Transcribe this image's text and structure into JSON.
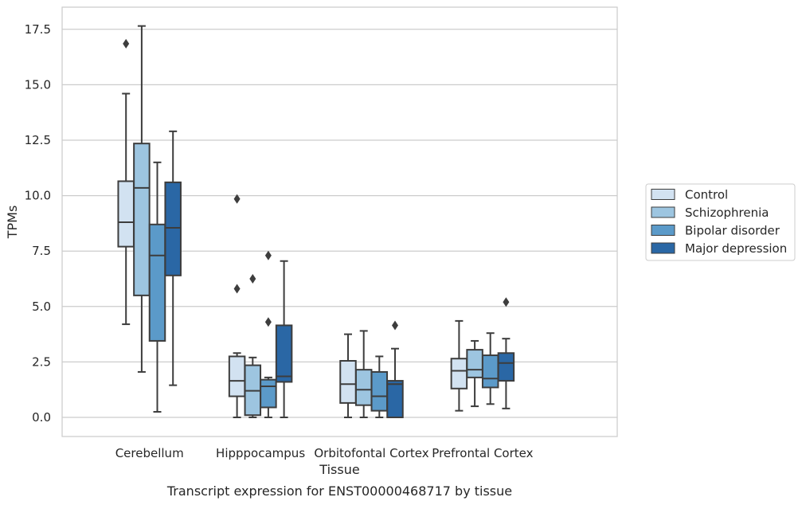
{
  "caption": "Transcript expression for ENST00000468717 by tissue",
  "chart_data": {
    "type": "box",
    "title": "",
    "xlabel": "Tissue",
    "ylabel": "TPMs",
    "ylim": [
      -0.85,
      18.5
    ],
    "yticks": [
      "0.0",
      "2.5",
      "5.0",
      "7.5",
      "10.0",
      "12.5",
      "15.0",
      "17.5"
    ],
    "ytick_values": [
      0,
      2.5,
      5.0,
      7.5,
      10.0,
      12.5,
      15.0,
      17.5
    ],
    "grid": "horizontal",
    "legend_position": "right",
    "categories": [
      "Cerebellum",
      "Hipppocampus",
      "Orbitofontal Cortex",
      "Prefrontal Cortex"
    ],
    "series": [
      {
        "name": "Control",
        "color": "#d2e2f1",
        "boxes": [
          {
            "whisker_low": 4.2,
            "q1": 7.7,
            "median": 8.8,
            "q3": 10.65,
            "whisker_high": 14.6,
            "outliers": [
              16.85
            ]
          },
          {
            "whisker_low": 0.0,
            "q1": 0.95,
            "median": 1.65,
            "q3": 2.75,
            "whisker_high": 2.9,
            "outliers": [
              5.8,
              9.85
            ]
          },
          {
            "whisker_low": 0.0,
            "q1": 0.65,
            "median": 1.5,
            "q3": 2.55,
            "whisker_high": 3.75,
            "outliers": []
          },
          {
            "whisker_low": 0.3,
            "q1": 1.3,
            "median": 2.1,
            "q3": 2.65,
            "whisker_high": 4.35,
            "outliers": []
          }
        ]
      },
      {
        "name": "Schizophrenia",
        "color": "#9dc5e0",
        "boxes": [
          {
            "whisker_low": 2.05,
            "q1": 5.5,
            "median": 10.35,
            "q3": 12.35,
            "whisker_high": 17.65,
            "outliers": []
          },
          {
            "whisker_low": 0.0,
            "q1": 0.1,
            "median": 1.2,
            "q3": 2.35,
            "whisker_high": 2.7,
            "outliers": [
              6.25
            ]
          },
          {
            "whisker_low": 0.0,
            "q1": 0.55,
            "median": 1.25,
            "q3": 2.15,
            "whisker_high": 3.9,
            "outliers": []
          },
          {
            "whisker_low": 0.5,
            "q1": 1.8,
            "median": 2.15,
            "q3": 3.05,
            "whisker_high": 3.45,
            "outliers": []
          }
        ]
      },
      {
        "name": "Bipolar disorder",
        "color": "#5b9ac9",
        "boxes": [
          {
            "whisker_low": 0.25,
            "q1": 3.45,
            "median": 7.3,
            "q3": 8.7,
            "whisker_high": 11.5,
            "outliers": []
          },
          {
            "whisker_low": 0.0,
            "q1": 0.45,
            "median": 1.4,
            "q3": 1.7,
            "whisker_high": 1.8,
            "outliers": [
              4.3,
              7.3
            ]
          },
          {
            "whisker_low": 0.0,
            "q1": 0.3,
            "median": 0.95,
            "q3": 2.05,
            "whisker_high": 2.75,
            "outliers": []
          },
          {
            "whisker_low": 0.6,
            "q1": 1.35,
            "median": 1.75,
            "q3": 2.8,
            "whisker_high": 3.8,
            "outliers": []
          }
        ]
      },
      {
        "name": "Major depression",
        "color": "#2a67a5",
        "boxes": [
          {
            "whisker_low": 1.45,
            "q1": 6.4,
            "median": 8.55,
            "q3": 10.6,
            "whisker_high": 12.9,
            "outliers": []
          },
          {
            "whisker_low": 0.0,
            "q1": 1.6,
            "median": 1.85,
            "q3": 4.15,
            "whisker_high": 7.05,
            "outliers": []
          },
          {
            "whisker_low": 0.0,
            "q1": 0.0,
            "median": 1.5,
            "q3": 1.65,
            "whisker_high": 3.1,
            "outliers": [
              4.15
            ]
          },
          {
            "whisker_low": 0.4,
            "q1": 1.65,
            "median": 2.45,
            "q3": 2.9,
            "whisker_high": 3.55,
            "outliers": [
              5.2
            ]
          }
        ]
      }
    ]
  }
}
